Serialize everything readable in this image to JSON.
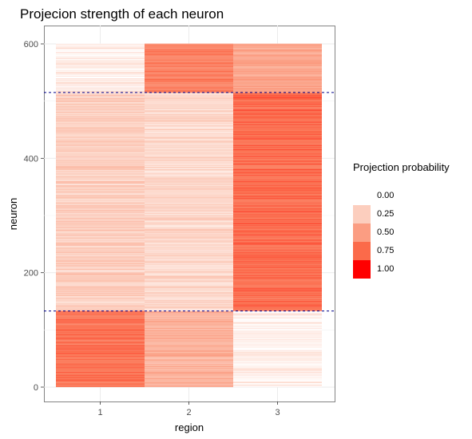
{
  "chart_data": {
    "type": "heatmap",
    "title": "Projecion strength of each neuron",
    "xlabel": "region",
    "ylabel": "neuron",
    "x_categories": [
      "1",
      "2",
      "3"
    ],
    "y_ticks": [
      0,
      200,
      400,
      600
    ],
    "ylim": [
      -10,
      620
    ],
    "n_neurons": 600,
    "grid": true,
    "hlines": [
      {
        "y": 133,
        "color": "#00008B",
        "style": "dashed"
      },
      {
        "y": 515,
        "color": "#00008B",
        "style": "dashed"
      }
    ],
    "groups": [
      {
        "neuron_range": [
          1,
          133
        ],
        "values": [
          0.7,
          0.4,
          0.08
        ]
      },
      {
        "neuron_range": [
          134,
          515
        ],
        "values": [
          0.25,
          0.2,
          0.72
        ]
      },
      {
        "neuron_range": [
          516,
          600
        ],
        "values": [
          0.1,
          0.65,
          0.45
        ]
      }
    ],
    "colorscale": {
      "low": "#FFFFFF",
      "high": "#FF0000"
    },
    "legend": {
      "title": "Projection probability",
      "position": "right",
      "entries": [
        {
          "label": "0.00",
          "color": "#FFFFFF"
        },
        {
          "label": "0.25",
          "color": "#FCCEBE"
        },
        {
          "label": "0.50",
          "color": "#FB9D82"
        },
        {
          "label": "0.75",
          "color": "#FB6A4A"
        },
        {
          "label": "1.00",
          "color": "#FF0000"
        }
      ]
    }
  }
}
